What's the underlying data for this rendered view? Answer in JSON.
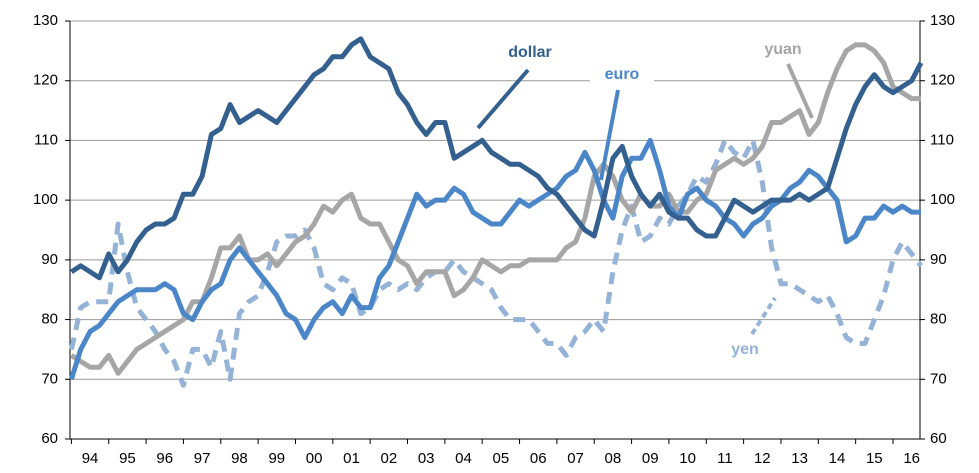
{
  "chart_data": {
    "type": "line",
    "x": [
      1994,
      1994.25,
      1994.5,
      1994.75,
      1995,
      1995.25,
      1995.5,
      1995.75,
      1996,
      1996.25,
      1996.5,
      1996.75,
      1997,
      1997.25,
      1997.5,
      1997.75,
      1998,
      1998.25,
      1998.5,
      1998.75,
      1999,
      1999.25,
      1999.5,
      1999.75,
      2000,
      2000.25,
      2000.5,
      2000.75,
      2001,
      2001.25,
      2001.5,
      2001.75,
      2002,
      2002.25,
      2002.5,
      2002.75,
      2003,
      2003.25,
      2003.5,
      2003.75,
      2004,
      2004.25,
      2004.5,
      2004.75,
      2005,
      2005.25,
      2005.5,
      2005.75,
      2006,
      2006.25,
      2006.5,
      2006.75,
      2007,
      2007.25,
      2007.5,
      2007.75,
      2008,
      2008.25,
      2008.5,
      2008.75,
      2009,
      2009.25,
      2009.5,
      2009.75,
      2010,
      2010.25,
      2010.5,
      2010.75,
      2011,
      2011.25,
      2011.5,
      2011.75,
      2012,
      2012.25,
      2012.5,
      2012.75,
      2013,
      2013.25,
      2013.5,
      2013.75,
      2014,
      2014.25,
      2014.5,
      2014.75,
      2015,
      2015.25,
      2015.5,
      2015.75,
      2016,
      2016.25,
      2016.5,
      2016.75
    ],
    "series": [
      {
        "name": "dollar",
        "color": "#34608f",
        "dash": false,
        "values": [
          88,
          89,
          88,
          87,
          91,
          88,
          90,
          93,
          95,
          96,
          96,
          97,
          101,
          101,
          104,
          111,
          112,
          116,
          113,
          114,
          115,
          114,
          113,
          115,
          117,
          119,
          121,
          122,
          124,
          124,
          126,
          127,
          124,
          123,
          122,
          118,
          116,
          113,
          111,
          113,
          113,
          107,
          108,
          109,
          110,
          108,
          107,
          106,
          106,
          105,
          104,
          102,
          101,
          99,
          97,
          95,
          94,
          100,
          107,
          109,
          104,
          101,
          99,
          101,
          98,
          97,
          97,
          95,
          94,
          94,
          97,
          100,
          99,
          98,
          99,
          100,
          100,
          100,
          101,
          100,
          101,
          102,
          107,
          112,
          116,
          119,
          121,
          119,
          118,
          119,
          120,
          123
        ]
      },
      {
        "name": "euro",
        "color": "#4a86c8",
        "dash": false,
        "values": [
          70,
          75,
          78,
          79,
          81,
          83,
          84,
          85,
          85,
          85,
          86,
          85,
          81,
          80,
          83,
          85,
          86,
          90,
          92,
          90,
          88,
          86,
          84,
          81,
          80,
          77,
          80,
          82,
          83,
          81,
          84,
          82,
          82,
          87,
          89,
          93,
          97,
          101,
          99,
          100,
          100,
          102,
          101,
          98,
          97,
          96,
          96,
          98,
          100,
          99,
          100,
          101,
          102,
          104,
          105,
          108,
          105,
          100,
          97,
          104,
          107,
          107,
          110,
          105,
          99,
          97,
          101,
          102,
          100,
          99,
          97,
          96,
          94,
          96,
          97,
          99,
          100,
          102,
          103,
          105,
          104,
          102,
          100,
          93,
          94,
          97,
          97,
          99,
          98,
          99,
          98,
          98
        ]
      },
      {
        "name": "yuan",
        "color": "#a6a6a6",
        "dash": false,
        "values": [
          74,
          73,
          72,
          72,
          74,
          71,
          73,
          75,
          76,
          77,
          78,
          79,
          80,
          83,
          83,
          87,
          92,
          92,
          94,
          90,
          90,
          91,
          89,
          91,
          93,
          94,
          96,
          99,
          98,
          100,
          101,
          97,
          96,
          96,
          93,
          90,
          89,
          86,
          88,
          88,
          88,
          84,
          85,
          87,
          90,
          89,
          88,
          89,
          89,
          90,
          90,
          90,
          90,
          92,
          93,
          97,
          104,
          106,
          104,
          100,
          98,
          101,
          99,
          99,
          101,
          98,
          98,
          100,
          101,
          105,
          106,
          107,
          106,
          107,
          109,
          113,
          113,
          114,
          115,
          111,
          113,
          118,
          122,
          125,
          126,
          126,
          125,
          123,
          119,
          118,
          117,
          117
        ]
      },
      {
        "name": "yen",
        "color": "#95b3d7",
        "dash": true,
        "values": [
          75,
          82,
          83,
          83,
          83,
          96,
          88,
          82,
          80,
          78,
          75,
          73,
          69,
          75,
          75,
          72,
          78,
          70,
          81,
          83,
          84,
          88,
          93,
          94,
          94,
          95,
          92,
          86,
          85,
          87,
          86,
          81,
          82,
          85,
          86,
          85,
          86,
          85,
          87,
          88,
          88,
          90,
          88,
          87,
          86,
          85,
          82,
          80,
          80,
          80,
          78,
          76,
          76,
          74,
          77,
          78,
          80,
          78,
          88,
          95,
          99,
          93,
          94,
          97,
          96,
          99,
          101,
          104,
          103,
          106,
          110,
          108,
          107,
          110,
          103,
          92,
          86,
          86,
          85,
          84,
          83,
          84,
          81,
          77,
          76,
          76,
          80,
          84,
          90,
          93,
          91,
          89
        ]
      }
    ],
    "xlim": [
      1994,
      2016.75
    ],
    "xticks": [
      {
        "value": 1994,
        "label": "94"
      },
      {
        "value": 1995,
        "label": "95"
      },
      {
        "value": 1996,
        "label": "96"
      },
      {
        "value": 1997,
        "label": "97"
      },
      {
        "value": 1998,
        "label": "98"
      },
      {
        "value": 1999,
        "label": "99"
      },
      {
        "value": 2000,
        "label": "00"
      },
      {
        "value": 2001,
        "label": "01"
      },
      {
        "value": 2002,
        "label": "02"
      },
      {
        "value": 2003,
        "label": "03"
      },
      {
        "value": 2004,
        "label": "04"
      },
      {
        "value": 2005,
        "label": "05"
      },
      {
        "value": 2006,
        "label": "06"
      },
      {
        "value": 2007,
        "label": "07"
      },
      {
        "value": 2008,
        "label": "08"
      },
      {
        "value": 2009,
        "label": "09"
      },
      {
        "value": 2010,
        "label": "10"
      },
      {
        "value": 2011,
        "label": "11"
      },
      {
        "value": 2012,
        "label": "12"
      },
      {
        "value": 2013,
        "label": "13"
      },
      {
        "value": 2014,
        "label": "14"
      },
      {
        "value": 2015,
        "label": "15"
      },
      {
        "value": 2016,
        "label": "16"
      }
    ],
    "ylim": [
      60,
      130
    ],
    "yticks": [
      60,
      70,
      80,
      90,
      100,
      110,
      120,
      130
    ],
    "y2lim": [
      60,
      130
    ],
    "y2ticks": [
      60,
      70,
      80,
      90,
      100,
      110,
      120,
      130
    ],
    "grid": true
  }
}
